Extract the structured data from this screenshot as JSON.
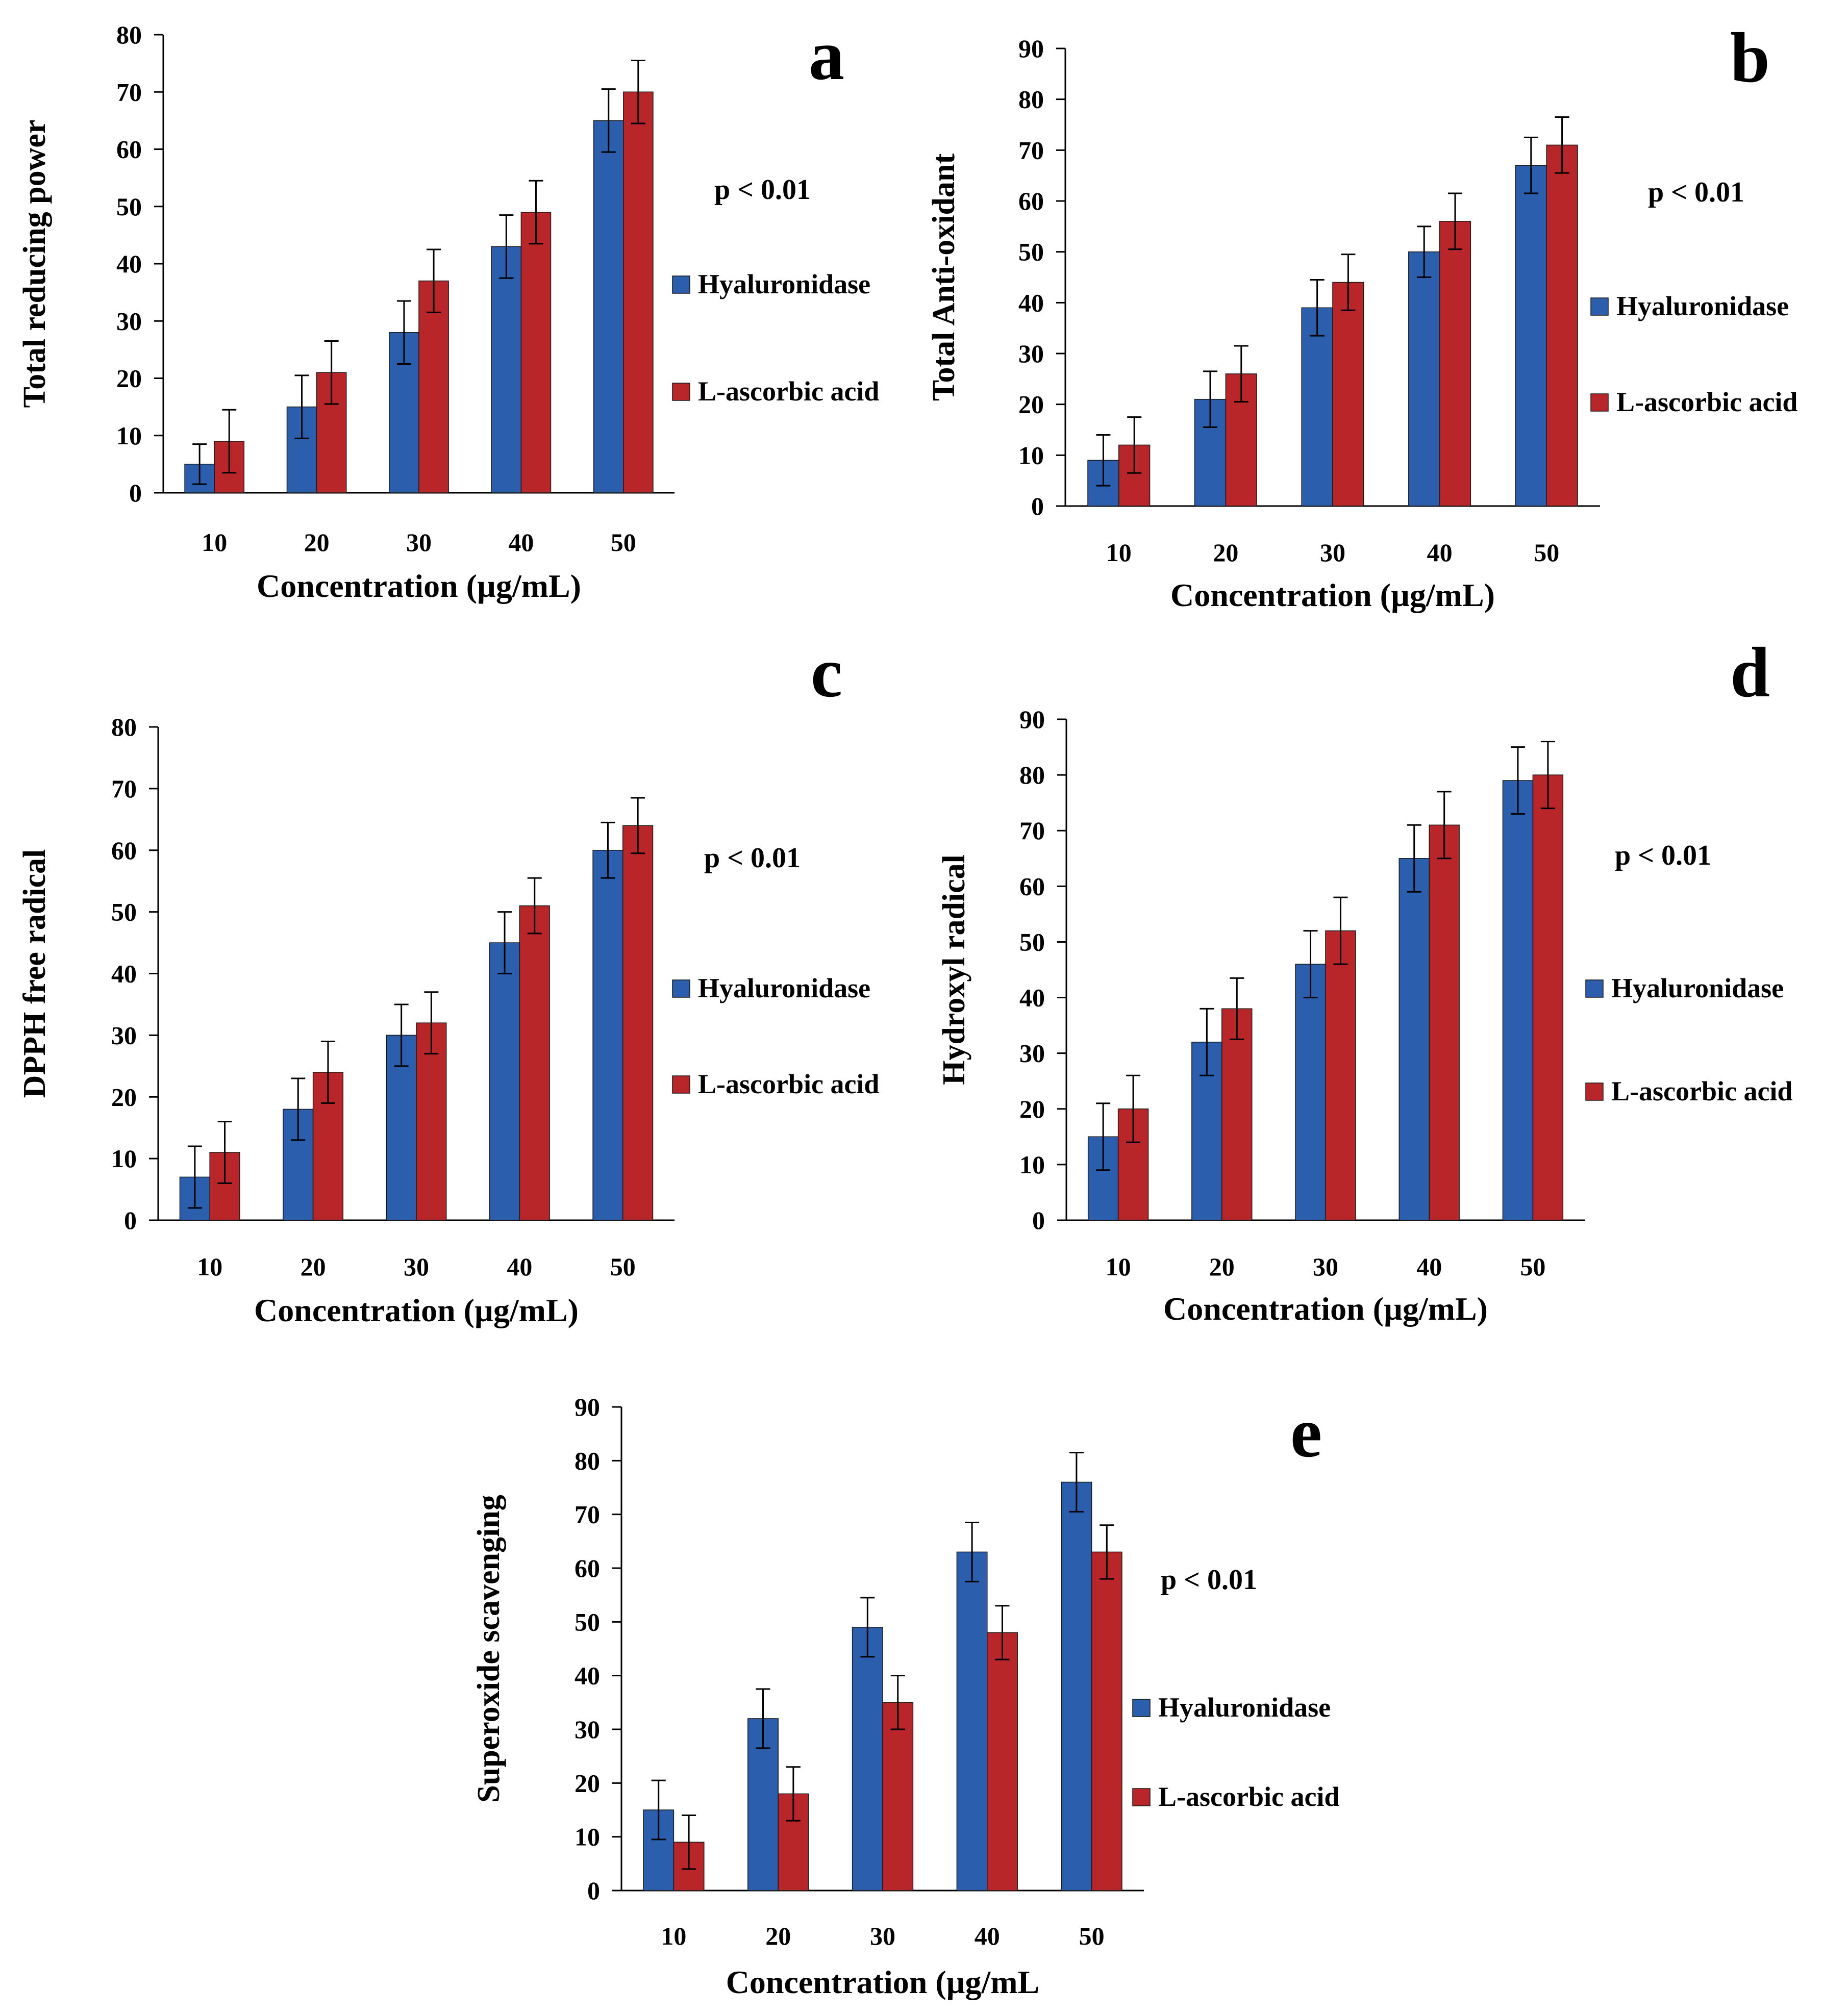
{
  "figure": {
    "domain": "Chart"
  },
  "legend": {
    "series": [
      "Hyaluronidase",
      "L-ascorbic acid"
    ]
  },
  "colors": {
    "Hyaluronidase": "#2b5ead",
    "L-ascorbic acid": "#b8262a",
    "background": "#ffffff",
    "axis": "#000000"
  },
  "chart_data": [
    {
      "panel": "a",
      "type": "bar",
      "title": "",
      "xlabel": "Concentration (µg/mL)",
      "ylabel": "Total reducing power",
      "categories": [
        "10",
        "20",
        "30",
        "40",
        "50"
      ],
      "ylim": [
        0,
        80
      ],
      "yticks": [
        0,
        10,
        20,
        30,
        40,
        50,
        60,
        70,
        80
      ],
      "series": [
        {
          "name": "Hyaluronidase",
          "values": [
            5,
            15,
            28,
            43,
            65
          ],
          "errors": [
            3.5,
            5.5,
            5.5,
            5.5,
            5.5
          ]
        },
        {
          "name": "L-ascorbic acid",
          "values": [
            9,
            21,
            37,
            49,
            70
          ],
          "errors": [
            5.5,
            5.5,
            5.5,
            5.5,
            5.5
          ]
        }
      ],
      "annotation": "p < 0.01",
      "legend_position": "right"
    },
    {
      "panel": "b",
      "type": "bar",
      "title": "",
      "xlabel": "Concentration (µg/mL)",
      "ylabel": "Total Anti-oxidant",
      "categories": [
        "10",
        "20",
        "30",
        "40",
        "50"
      ],
      "ylim": [
        0,
        90
      ],
      "yticks": [
        0,
        10,
        20,
        30,
        40,
        50,
        60,
        70,
        80,
        90
      ],
      "series": [
        {
          "name": "Hyaluronidase",
          "values": [
            9,
            21,
            39,
            50,
            67
          ],
          "errors": [
            5,
            5.5,
            5.5,
            5,
            5.5
          ]
        },
        {
          "name": "L-ascorbic acid",
          "values": [
            12,
            26,
            44,
            56,
            71
          ],
          "errors": [
            5.5,
            5.5,
            5.5,
            5.5,
            5.5
          ]
        }
      ],
      "annotation": "p < 0.01",
      "legend_position": "right"
    },
    {
      "panel": "c",
      "type": "bar",
      "title": "",
      "xlabel": "Concentration (µg/mL)",
      "ylabel": "DPPH free radical",
      "categories": [
        "10",
        "20",
        "30",
        "40",
        "50"
      ],
      "ylim": [
        0,
        80
      ],
      "yticks": [
        0,
        10,
        20,
        30,
        40,
        50,
        60,
        70,
        80
      ],
      "series": [
        {
          "name": "Hyaluronidase",
          "values": [
            7,
            18,
            30,
            45,
            60
          ],
          "errors": [
            5,
            5,
            5,
            5,
            4.5
          ]
        },
        {
          "name": "L-ascorbic acid",
          "values": [
            11,
            24,
            32,
            51,
            64
          ],
          "errors": [
            5,
            5,
            5,
            4.5,
            4.5
          ]
        }
      ],
      "annotation": "p < 0.01",
      "legend_position": "right"
    },
    {
      "panel": "d",
      "type": "bar",
      "title": "",
      "xlabel": "Concentration (µg/mL)",
      "ylabel": "Hydroxyl radical",
      "categories": [
        "10",
        "20",
        "30",
        "40",
        "50"
      ],
      "ylim": [
        0,
        90
      ],
      "yticks": [
        0,
        10,
        20,
        30,
        40,
        50,
        60,
        70,
        80,
        90
      ],
      "series": [
        {
          "name": "Hyaluronidase",
          "values": [
            15,
            32,
            46,
            65,
            79
          ],
          "errors": [
            6,
            6,
            6,
            6,
            6
          ]
        },
        {
          "name": "L-ascorbic acid",
          "values": [
            20,
            38,
            52,
            71,
            80
          ],
          "errors": [
            6,
            5.5,
            6,
            6,
            6
          ]
        }
      ],
      "annotation": "p < 0.01",
      "legend_position": "right"
    },
    {
      "panel": "e",
      "type": "bar",
      "title": "",
      "xlabel": "Concentration (µg/mL",
      "ylabel": "Superoxide scavenging",
      "categories": [
        "10",
        "20",
        "30",
        "40",
        "50"
      ],
      "ylim": [
        0,
        90
      ],
      "yticks": [
        0,
        10,
        20,
        30,
        40,
        50,
        60,
        70,
        80,
        90
      ],
      "series": [
        {
          "name": "Hyaluronidase",
          "values": [
            15,
            32,
            49,
            63,
            76
          ],
          "errors": [
            5.5,
            5.5,
            5.5,
            5.5,
            5.5
          ]
        },
        {
          "name": "L-ascorbic acid",
          "values": [
            9,
            18,
            35,
            48,
            63
          ],
          "errors": [
            5,
            5,
            5,
            5,
            5
          ]
        }
      ],
      "annotation": "p < 0.01",
      "legend_position": "right"
    }
  ]
}
